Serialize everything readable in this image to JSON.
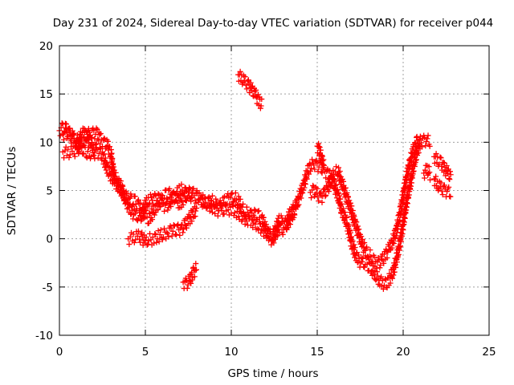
{
  "chart_data": {
    "type": "scatter",
    "title": "Day 231 of 2024, Sidereal Day-to-day VTEC variation (SDTVAR) for receiver p044",
    "xlabel": "GPS time / hours",
    "ylabel": "SDTVAR / TECUs",
    "xlim": [
      0,
      25
    ],
    "ylim": [
      -10,
      20
    ],
    "xticks": [
      "0",
      "5",
      "10",
      "15",
      "20",
      "25"
    ],
    "yticks": [
      "-10",
      "-5",
      "0",
      "5",
      "10",
      "15",
      "20"
    ],
    "grid": true,
    "marker": "plus",
    "color": "#ff0000",
    "band_width_tecu": 0.6,
    "series": [
      {
        "name": "s1",
        "points": [
          [
            0,
            11.2
          ],
          [
            0.2,
            11.5
          ],
          [
            0.4,
            11.3
          ],
          [
            0.6,
            10.9
          ],
          [
            0.8,
            10.5
          ],
          [
            1.0,
            10.2
          ],
          [
            1.2,
            10.0
          ],
          [
            1.4,
            10.3
          ],
          [
            1.6,
            10.8
          ],
          [
            1.8,
            10.9
          ],
          [
            2.0,
            11.0
          ],
          [
            2.2,
            10.8
          ],
          [
            2.4,
            10.3
          ],
          [
            2.6,
            10.0
          ],
          [
            2.8,
            9.6
          ],
          [
            3.0,
            8.8
          ],
          [
            3.1,
            7.5
          ],
          [
            3.2,
            6.4
          ],
          [
            3.4,
            6.0
          ],
          [
            3.6,
            5.3
          ],
          [
            3.8,
            4.2
          ],
          [
            4.0,
            3.5
          ],
          [
            4.2,
            2.8
          ],
          [
            4.4,
            2.4
          ],
          [
            4.6,
            2.3
          ],
          [
            4.8,
            2.5
          ],
          [
            5.0,
            3.5
          ],
          [
            5.2,
            4.0
          ],
          [
            5.4,
            4.1
          ],
          [
            5.6,
            4.2
          ],
          [
            5.8,
            4.0
          ],
          [
            6.0,
            3.6
          ],
          [
            6.2,
            3.3
          ],
          [
            6.4,
            3.6
          ],
          [
            6.6,
            4.3
          ],
          [
            6.8,
            4.6
          ],
          [
            7.0,
            5.1
          ],
          [
            7.2,
            5.0
          ],
          [
            7.4,
            4.8
          ],
          [
            7.6,
            4.7
          ],
          [
            7.8,
            4.6
          ],
          [
            8.0,
            4.5
          ],
          [
            8.2,
            4.0
          ],
          [
            8.4,
            3.6
          ],
          [
            8.6,
            3.8
          ],
          [
            8.8,
            4.0
          ],
          [
            9.0,
            3.7
          ],
          [
            9.2,
            3.5
          ],
          [
            9.4,
            3.4
          ],
          [
            9.6,
            3.8
          ],
          [
            9.8,
            4.1
          ],
          [
            10.0,
            4.3
          ],
          [
            10.2,
            4.2
          ],
          [
            10.4,
            4.0
          ],
          [
            10.6,
            3.2
          ],
          [
            10.8,
            2.8
          ],
          [
            11.0,
            2.6
          ],
          [
            11.2,
            2.5
          ],
          [
            11.4,
            2.4
          ],
          [
            11.6,
            2.3
          ],
          [
            11.8,
            2.0
          ],
          [
            12.0,
            1.0
          ],
          [
            12.2,
            0.5
          ],
          [
            12.4,
            0.3
          ],
          [
            12.6,
            1.0
          ],
          [
            12.8,
            2.0
          ],
          [
            13.0,
            1.8
          ],
          [
            13.2,
            1.5
          ],
          [
            13.4,
            2.5
          ],
          [
            13.6,
            3.0
          ],
          [
            13.8,
            3.5
          ],
          [
            14.0,
            4.5
          ],
          [
            14.2,
            5.5
          ],
          [
            14.4,
            6.8
          ],
          [
            14.6,
            7.5
          ],
          [
            14.8,
            7.8
          ],
          [
            15.0,
            7.6
          ],
          [
            15.2,
            7.4
          ],
          [
            15.4,
            7.0
          ],
          [
            15.6,
            6.8
          ],
          [
            15.8,
            6.3
          ],
          [
            16.0,
            5.5
          ],
          [
            16.2,
            4.5
          ],
          [
            16.4,
            3.2
          ],
          [
            16.6,
            2.2
          ],
          [
            16.8,
            1.2
          ],
          [
            17.0,
            -0.5
          ],
          [
            17.2,
            -1.5
          ],
          [
            17.4,
            -2.2
          ],
          [
            17.6,
            -2.6
          ],
          [
            17.8,
            -2.5
          ],
          [
            18.0,
            -2.8
          ],
          [
            18.2,
            -3.2
          ],
          [
            18.4,
            -3.8
          ],
          [
            18.6,
            -4.2
          ],
          [
            18.8,
            -4.6
          ],
          [
            19.0,
            -4.8
          ],
          [
            19.2,
            -4.2
          ],
          [
            19.4,
            -3.5
          ],
          [
            19.6,
            -2.2
          ],
          [
            19.8,
            -0.5
          ],
          [
            20.0,
            1.5
          ],
          [
            20.2,
            3.8
          ],
          [
            20.4,
            5.5
          ],
          [
            20.6,
            7.5
          ],
          [
            20.8,
            9.0
          ],
          [
            21.0,
            10.0
          ],
          [
            21.2,
            10.2
          ],
          [
            21.4,
            10.2
          ],
          [
            21.6,
            10.0
          ]
        ]
      },
      {
        "name": "s2",
        "points": [
          [
            0.2,
            9.0
          ],
          [
            0.5,
            8.9
          ],
          [
            0.8,
            9.0
          ],
          [
            1.0,
            9.1
          ],
          [
            1.1,
            9.0
          ],
          [
            1.2,
            10.4
          ],
          [
            1.4,
            11.0
          ],
          [
            1.6,
            10.8
          ],
          [
            1.8,
            10.1
          ],
          [
            2.0,
            9.6
          ],
          [
            2.2,
            9.3
          ]
        ]
      },
      {
        "name": "s3",
        "points": [
          [
            0.2,
            10.8
          ],
          [
            0.4,
            11.0
          ],
          [
            0.6,
            10.6
          ],
          [
            0.8,
            10.3
          ],
          [
            1.0,
            10.0
          ],
          [
            1.2,
            9.6
          ],
          [
            1.4,
            9.3
          ],
          [
            1.6,
            9.0
          ],
          [
            1.8,
            8.8
          ],
          [
            2.0,
            8.8
          ],
          [
            2.2,
            9.0
          ],
          [
            2.4,
            8.8
          ],
          [
            2.6,
            8.2
          ],
          [
            2.8,
            7.2
          ],
          [
            3.0,
            6.5
          ],
          [
            3.2,
            6.0
          ],
          [
            3.4,
            5.5
          ],
          [
            3.6,
            5.0
          ],
          [
            3.8,
            4.6
          ],
          [
            4.0,
            4.2
          ],
          [
            4.2,
            4.0
          ],
          [
            4.4,
            3.8
          ],
          [
            4.6,
            3.5
          ],
          [
            4.8,
            2.8
          ],
          [
            5.0,
            2.4
          ],
          [
            5.2,
            2.1
          ],
          [
            5.4,
            2.6
          ],
          [
            5.6,
            3.2
          ],
          [
            5.8,
            3.8
          ],
          [
            6.0,
            4.2
          ],
          [
            6.2,
            4.5
          ],
          [
            6.4,
            4.6
          ],
          [
            6.6,
            4.4
          ],
          [
            6.8,
            4.0
          ],
          [
            7.0,
            3.6
          ],
          [
            7.2,
            4.1
          ],
          [
            7.4,
            4.5
          ],
          [
            7.6,
            4.4
          ],
          [
            7.8,
            4.3
          ]
        ]
      },
      {
        "name": "s4",
        "points": [
          [
            4.0,
            0.0
          ],
          [
            4.3,
            0.1
          ],
          [
            4.6,
            0.2
          ],
          [
            4.8,
            0.1
          ],
          [
            5.0,
            -0.4
          ],
          [
            5.2,
            -0.1
          ],
          [
            5.5,
            0.0
          ],
          [
            5.8,
            0.3
          ],
          [
            6.0,
            0.4
          ],
          [
            6.3,
            0.7
          ],
          [
            6.5,
            0.9
          ],
          [
            6.7,
            0.8
          ],
          [
            6.9,
            0.9
          ],
          [
            7.1,
            1.0
          ],
          [
            7.3,
            1.4
          ],
          [
            7.5,
            1.9
          ],
          [
            7.7,
            2.4
          ],
          [
            7.9,
            2.9
          ],
          [
            8.0,
            3.3
          ]
        ]
      },
      {
        "name": "s5",
        "points": [
          [
            7.2,
            -4.5
          ],
          [
            7.4,
            -4.7
          ],
          [
            7.6,
            -4.3
          ],
          [
            7.8,
            -3.5
          ],
          [
            8.0,
            -3.0
          ]
        ]
      },
      {
        "name": "s6",
        "points": [
          [
            10.4,
            17.0
          ],
          [
            10.6,
            16.6
          ],
          [
            10.8,
            16.2
          ],
          [
            11.0,
            15.9
          ],
          [
            11.2,
            15.4
          ],
          [
            11.4,
            14.9
          ],
          [
            11.6,
            14.3
          ],
          [
            11.8,
            13.8
          ]
        ]
      },
      {
        "name": "s7",
        "points": [
          [
            8.2,
            4.2
          ],
          [
            8.5,
            3.8
          ],
          [
            8.8,
            3.4
          ],
          [
            9.1,
            3.0
          ],
          [
            9.4,
            2.9
          ],
          [
            9.7,
            3.0
          ],
          [
            10.0,
            3.1
          ],
          [
            10.3,
            2.8
          ],
          [
            10.6,
            2.3
          ],
          [
            10.9,
            2.0
          ],
          [
            11.2,
            1.8
          ],
          [
            11.5,
            1.5
          ],
          [
            11.8,
            1.0
          ],
          [
            12.1,
            0.5
          ],
          [
            12.4,
            -0.2
          ],
          [
            12.6,
            0.6
          ],
          [
            12.8,
            1.2
          ],
          [
            13.0,
            1.0
          ],
          [
            13.2,
            1.3
          ],
          [
            13.4,
            2.0
          ],
          [
            13.6,
            2.6
          ],
          [
            13.8,
            3.0
          ]
        ]
      },
      {
        "name": "s8",
        "points": [
          [
            14.6,
            4.8
          ],
          [
            14.8,
            5.0
          ],
          [
            15.0,
            4.6
          ],
          [
            15.2,
            4.2
          ],
          [
            15.4,
            4.6
          ],
          [
            15.6,
            5.2
          ],
          [
            15.8,
            6.0
          ],
          [
            16.0,
            6.8
          ],
          [
            16.2,
            7.0
          ],
          [
            16.4,
            6.0
          ],
          [
            16.6,
            5.0
          ],
          [
            16.8,
            3.8
          ],
          [
            17.0,
            2.8
          ],
          [
            17.2,
            1.6
          ],
          [
            17.4,
            0.5
          ],
          [
            17.6,
            -0.5
          ],
          [
            17.8,
            -1.2
          ],
          [
            18.0,
            -1.6
          ],
          [
            18.2,
            -2.0
          ],
          [
            18.4,
            -2.4
          ],
          [
            18.6,
            -2.6
          ],
          [
            18.8,
            -2.2
          ],
          [
            19.0,
            -1.6
          ],
          [
            19.2,
            -1.0
          ],
          [
            19.4,
            -0.2
          ],
          [
            19.6,
            0.8
          ],
          [
            19.8,
            2.5
          ],
          [
            20.0,
            4.5
          ],
          [
            20.2,
            6.5
          ],
          [
            20.4,
            8.0
          ],
          [
            20.6,
            9.2
          ],
          [
            20.8,
            10.0
          ],
          [
            21.0,
            10.2
          ]
        ]
      },
      {
        "name": "s9",
        "points": [
          [
            15.0,
            9.6
          ],
          [
            15.1,
            9.2
          ],
          [
            15.2,
            8.6
          ],
          [
            15.3,
            8.0
          ],
          [
            15.4,
            7.4
          ]
        ]
      },
      {
        "name": "s10",
        "points": [
          [
            21.2,
            6.8
          ],
          [
            21.4,
            7.2
          ],
          [
            21.6,
            6.6
          ]
        ]
      },
      {
        "name": "s11",
        "points": [
          [
            21.8,
            6.2
          ],
          [
            22.0,
            5.6
          ],
          [
            22.2,
            5.2
          ],
          [
            22.4,
            5.0
          ],
          [
            22.6,
            4.9
          ],
          [
            22.8,
            4.7
          ]
        ]
      },
      {
        "name": "s12",
        "points": [
          [
            21.8,
            8.5
          ],
          [
            22.0,
            8.1
          ],
          [
            22.2,
            7.8
          ],
          [
            22.4,
            7.3
          ],
          [
            22.6,
            6.8
          ],
          [
            22.8,
            6.3
          ]
        ]
      }
    ]
  }
}
